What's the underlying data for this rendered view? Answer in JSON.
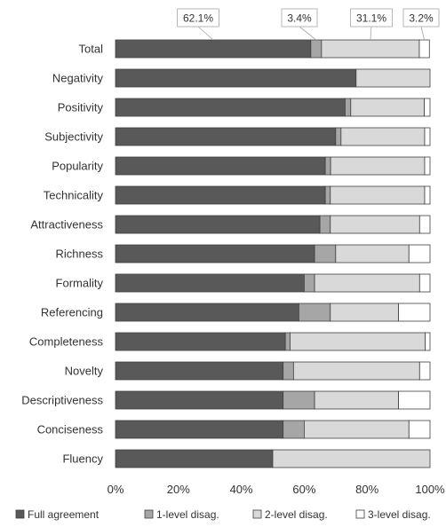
{
  "chart_data": {
    "type": "bar",
    "orientation": "horizontal",
    "stacked": true,
    "percent_stacked": true,
    "title": "",
    "xlabel": "",
    "ylabel": "",
    "xlim": [
      0,
      100
    ],
    "x_tick_labels": [
      "0%",
      "20%",
      "40%",
      "60%",
      "80%",
      "100%"
    ],
    "grid": false,
    "legend_position": "bottom",
    "categories": [
      "Total",
      "Negativity",
      "Positivity",
      "Subjectivity",
      "Popularity",
      "Technicality",
      "Attractiveness",
      "Richness",
      "Formality",
      "Referencing",
      "Completeness",
      "Novelty",
      "Descriptiveness",
      "Conciseness",
      "Fluency"
    ],
    "series": [
      {
        "name": "Full agreement",
        "color": "#595959",
        "values": [
          62.1,
          76.5,
          73.0,
          70.0,
          66.7,
          66.7,
          65.0,
          63.3,
          60.0,
          58.3,
          54.0,
          53.3,
          53.3,
          53.3,
          50.0
        ]
      },
      {
        "name": "1-level disag.",
        "color": "#a6a6a6",
        "values": [
          3.4,
          0.0,
          1.8,
          1.7,
          1.7,
          1.6,
          3.3,
          6.7,
          3.3,
          10.0,
          1.5,
          3.3,
          10.0,
          6.7,
          0.0
        ]
      },
      {
        "name": "2-level disag.",
        "color": "#d9d9d9",
        "values": [
          31.1,
          23.5,
          23.4,
          26.6,
          29.9,
          30.0,
          28.4,
          23.3,
          33.4,
          21.7,
          43.0,
          40.1,
          26.7,
          33.3,
          50.0
        ]
      },
      {
        "name": "3-level disag.",
        "color": "#ffffff",
        "values": [
          3.2,
          0.0,
          1.8,
          1.7,
          1.7,
          1.7,
          3.3,
          6.7,
          3.3,
          10.0,
          1.5,
          3.3,
          10.0,
          6.7,
          0.0
        ]
      }
    ],
    "data_labels": [
      {
        "category": "Total",
        "series": "Full agreement",
        "text": "62.1%"
      },
      {
        "category": "Total",
        "series": "1-level disag.",
        "text": "3.4%"
      },
      {
        "category": "Total",
        "series": "2-level disag.",
        "text": "31.1%"
      },
      {
        "category": "Total",
        "series": "3-level disag.",
        "text": "3.2%"
      }
    ]
  }
}
